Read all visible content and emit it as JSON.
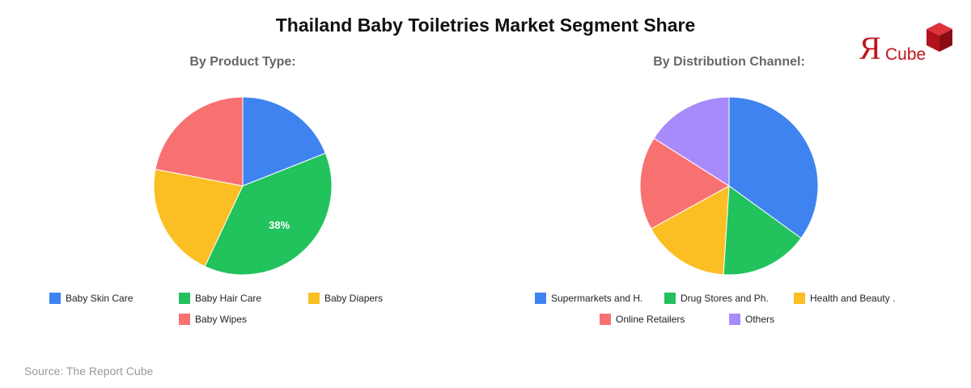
{
  "title": "Thailand Baby Toiletries Market Segment Share",
  "logo": {
    "letter": "Я",
    "word": "Cube"
  },
  "source": "Source: The Report Cube",
  "colors": {
    "blue": "#3f83f1",
    "green": "#22c25d",
    "yellow": "#fbbf24",
    "red": "#f87171",
    "purple": "#a78bfa",
    "logo_red": "#c0141c"
  },
  "chart_data": [
    {
      "type": "pie",
      "title": "By Product Type:",
      "legend": "bottom",
      "slices": [
        {
          "label": "Baby Skin Care",
          "value": 19,
          "color": "#3f83f1"
        },
        {
          "label": "Baby Hair Care",
          "value": 38,
          "color": "#22c25d",
          "data_label": "38%"
        },
        {
          "label": "Baby Diapers",
          "value": 21,
          "color": "#fbbf24"
        },
        {
          "label": "Baby Wipes",
          "value": 22,
          "color": "#f87171"
        }
      ]
    },
    {
      "type": "pie",
      "title": "By Distribution Channel:",
      "legend": "bottom",
      "slices": [
        {
          "label": "Supermarkets and H.",
          "value": 35,
          "color": "#3f83f1"
        },
        {
          "label": "Drug Stores and Ph.",
          "value": 16,
          "color": "#22c25d"
        },
        {
          "label": "Health and Beauty .",
          "value": 16,
          "color": "#fbbf24"
        },
        {
          "label": "Online Retailers",
          "value": 17,
          "color": "#f87171"
        },
        {
          "label": "Others",
          "value": 16,
          "color": "#a78bfa"
        }
      ]
    }
  ]
}
